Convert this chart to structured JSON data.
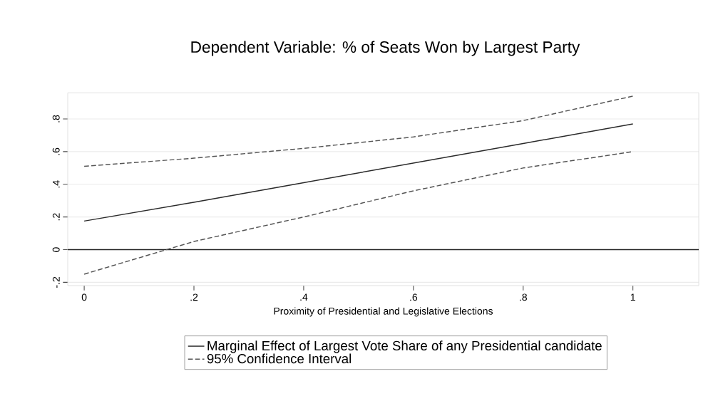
{
  "chart_data": {
    "type": "line",
    "title": "Dependent Variable: % of Seats Won by Largest Party",
    "xlabel": "Proximity of Presidential and Legislative Elections",
    "x": [
      0,
      0.2,
      0.4,
      0.6,
      0.8,
      1
    ],
    "series": [
      {
        "name": "Marginal Effect of Largest Vote Share of any Presidential candidate",
        "color": "#2a2a2a",
        "line_style": "solid",
        "values": [
          0.175,
          0.29,
          0.41,
          0.53,
          0.65,
          0.77
        ]
      },
      {
        "name": "95% Confidence Interval",
        "color": "#555555",
        "line_style": "dashed",
        "values": [
          0.51,
          0.56,
          0.62,
          0.69,
          0.79,
          0.94
        ]
      },
      {
        "color": "#555555",
        "line_style": "dashed",
        "values": [
          -0.15,
          0.05,
          0.2,
          0.36,
          0.5,
          0.6
        ]
      }
    ],
    "xlim": [
      -0.03,
      1.12
    ],
    "ylim": [
      -0.22,
      0.96
    ],
    "xticks": [
      0,
      {
        "value": 0.2,
        "label": ".2"
      },
      {
        "value": 0.4,
        "label": ".4"
      },
      {
        "value": 0.6,
        "label": ".6"
      },
      {
        "value": 0.8,
        "label": ".8"
      },
      1
    ],
    "yticks": [
      {
        "value": -0.2,
        "label": "-.2"
      },
      0,
      {
        "value": 0.2,
        "label": ".2"
      },
      {
        "value": 0.4,
        "label": ".4"
      },
      {
        "value": 0.6,
        "label": ".6"
      },
      {
        "value": 0.8,
        "label": ".8"
      }
    ],
    "ref_lines": [
      {
        "axis": "y",
        "value": 0,
        "color": "#222222",
        "line_style": "solid"
      }
    ],
    "grid": "y",
    "legend": "bottom",
    "marker": "none"
  }
}
